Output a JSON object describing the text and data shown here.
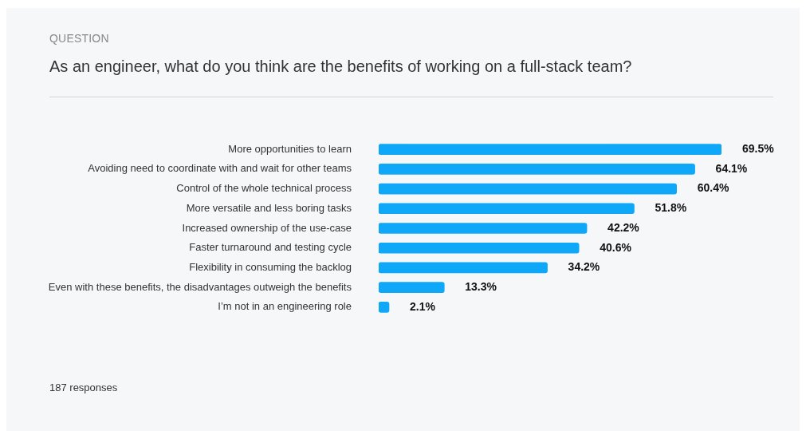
{
  "chart_data": {
    "type": "bar",
    "orientation": "horizontal",
    "subtitle": "QUESTION",
    "title": "As an engineer, what do you think are the benefits of working on a full-stack team?",
    "categories": [
      "More opportunities to learn",
      "Avoiding need to coordinate with and wait for other teams",
      "Control of the whole technical process",
      "More versatile and less boring tasks",
      "Increased ownership of the use-case",
      "Faster turnaround and testing cycle",
      "Flexibility in consuming the backlog",
      "Even with these benefits, the disadvantages outweigh the benefits",
      "I’m not in an engineering role"
    ],
    "values": [
      69.5,
      64.1,
      60.4,
      51.8,
      42.2,
      40.6,
      34.2,
      13.3,
      2.1
    ],
    "value_labels": [
      "69.5%",
      "64.1%",
      "60.4%",
      "51.8%",
      "42.2%",
      "40.6%",
      "34.2%",
      "13.3%",
      "2.1%"
    ],
    "color": "#0fa8f8",
    "tick_labels": "y",
    "grid": false,
    "legend": false,
    "annotations": [
      "187 responses"
    ]
  }
}
